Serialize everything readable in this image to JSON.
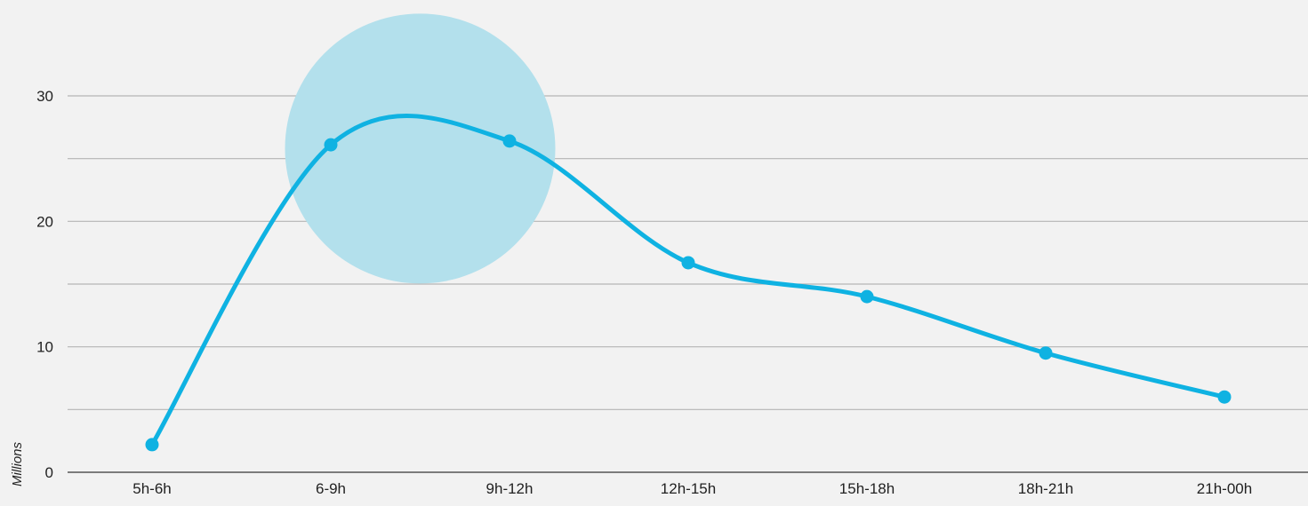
{
  "chart_data": {
    "type": "line",
    "title": "",
    "xlabel": "",
    "ylabel": "Millions",
    "categories": [
      "5h-6h",
      "6-9h",
      "9h-12h",
      "12h-15h",
      "15h-18h",
      "18h-21h",
      "21h-00h"
    ],
    "series": [
      {
        "values": [
          2.2,
          26.1,
          26.4,
          16.7,
          14.0,
          9.5,
          6.0
        ],
        "color": "#0fb2e2"
      }
    ],
    "ylim": [
      0,
      30
    ],
    "y_ticks": [
      "0",
      "10",
      "20",
      "30"
    ],
    "grid": true,
    "highlight": {
      "between_categories": [
        "6-9h",
        "9h-12h"
      ],
      "center_value": 25.8,
      "color": "#b3e0ec"
    },
    "colors": {
      "background": "#f2f2f2",
      "gridline": "#b5b5b5",
      "axis": "#555555",
      "text": "#222222"
    }
  }
}
